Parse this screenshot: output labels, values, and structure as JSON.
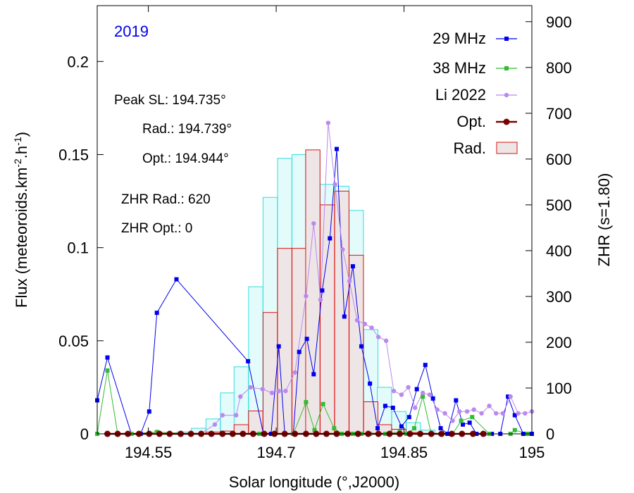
{
  "chart_data": {
    "type": "bar",
    "title": "2019",
    "xlabel": "Solar longitude (°,J2000)",
    "ylabel_left": [
      "Flux (meteoroids.km",
      "-2",
      ".h",
      "-1",
      ")"
    ],
    "ylabel_right": "ZHR (s=1.80)",
    "xlim": [
      194.49,
      195.0
    ],
    "ylim_left": [
      0,
      0.23
    ],
    "ylim_right": [
      0,
      935
    ],
    "x_ticks": [
      194.55,
      194.7,
      194.85,
      195
    ],
    "x_tick_labels": [
      "194.55",
      "194.7",
      "194.85",
      "195"
    ],
    "y_left_ticks": [
      0,
      0.05,
      0.1,
      0.15,
      0.2
    ],
    "y_left_tick_labels": [
      "0",
      "0.05",
      "0.1",
      "0.15",
      "0.2"
    ],
    "y_right_ticks": [
      0,
      100,
      200,
      300,
      400,
      500,
      600,
      700,
      800,
      900
    ],
    "y_right_tick_labels": [
      "0",
      "100",
      "200",
      "300",
      "400",
      "500",
      "600",
      "700",
      "800",
      "900"
    ],
    "annotations": {
      "peak_sl": "Peak SL: 194.735°",
      "rad": "Rad.: 194.739°",
      "opt": "Opt.: 194.944°",
      "zhr_rad": "ZHR Rad.: 620",
      "zhr_opt": "ZHR Opt.: 0"
    },
    "legend": [
      "29 MHz",
      "38 MHz",
      "Li 2022",
      "Opt.",
      "Rad."
    ],
    "colors": {
      "mhz29": "#0000ee",
      "mhz38": "#33bb33",
      "li2022": "#bb88ee",
      "opt": "#7a0000",
      "rad_stroke": "#dd1111",
      "rad_fill": "#eee6e6",
      "cyan_stroke": "#33dddd",
      "cyan_fill": "#e4fbfb",
      "title": "#0000ee"
    },
    "bar_width": 0.0168,
    "cyan_bars": {
      "x": [
        194.592,
        194.609,
        194.626,
        194.643,
        194.659,
        194.676,
        194.693,
        194.71,
        194.727,
        194.743,
        194.76,
        194.777,
        194.794,
        194.811,
        194.827,
        194.844,
        194.861,
        194.878
      ],
      "values": [
        0.001,
        0.003,
        0.008,
        0.022,
        0.036,
        0.079,
        0.127,
        0.148,
        0.15,
        0.152,
        0.134,
        0.133,
        0.12,
        0.056,
        0.025,
        0.012,
        0.006,
        0.002
      ]
    },
    "rad_bars": {
      "x": [
        194.609,
        194.626,
        194.643,
        194.659,
        194.676,
        194.693,
        194.71,
        194.727,
        194.743,
        194.76,
        194.777,
        194.794,
        194.811,
        194.827,
        194.844,
        194.861
      ],
      "values": [
        1,
        4,
        6,
        20,
        50,
        265,
        405,
        405,
        620,
        500,
        530,
        390,
        70,
        20,
        10,
        3
      ]
    },
    "series": [
      {
        "name": "29 MHz",
        "x": [
          194.49,
          194.502,
          194.53,
          194.541,
          194.551,
          194.56,
          194.583,
          194.667,
          194.685,
          194.694,
          194.703,
          194.71,
          194.72,
          194.727,
          194.736,
          194.744,
          194.754,
          194.763,
          194.771,
          194.78,
          194.79,
          194.8,
          194.81,
          194.819,
          194.828,
          194.837,
          194.847,
          194.856,
          194.865,
          194.875,
          194.884,
          194.893,
          194.901,
          194.911,
          194.919,
          194.927,
          194.935,
          194.944,
          194.953,
          194.963,
          194.972,
          194.98,
          194.99,
          195.0
        ],
        "values": [
          0.018,
          0.041,
          0,
          0,
          0.012,
          0.065,
          0.083,
          0.039,
          0,
          0,
          0.047,
          0,
          0,
          0.044,
          0.051,
          0.032,
          0.077,
          0.105,
          0.153,
          0.063,
          0.09,
          0.047,
          0.027,
          0.003,
          0.015,
          0.014,
          0.004,
          0.009,
          0.024,
          0.037,
          0.019,
          0.003,
          0,
          0.018,
          0.005,
          0.006,
          0,
          0,
          0,
          0,
          0.02,
          0.01,
          0,
          0
        ]
      },
      {
        "name": "38 MHz",
        "x": [
          194.49,
          194.502,
          194.514,
          194.53,
          194.56,
          194.6,
          194.68,
          194.72,
          194.735,
          194.745,
          194.755,
          194.768,
          194.777,
          194.79,
          194.8,
          194.81,
          194.828,
          194.845,
          194.853,
          194.862,
          194.872,
          194.882,
          194.893,
          194.907,
          194.917,
          194.93,
          194.95,
          194.975,
          194.98,
          194.995
        ],
        "values": [
          0,
          0.034,
          0,
          0,
          0.001,
          0,
          0,
          0,
          0.017,
          0.002,
          0.016,
          0.003,
          0,
          0,
          0,
          0,
          0,
          0.001,
          0,
          0.003,
          0.02,
          0,
          0,
          0,
          0.007,
          0.009,
          0,
          0,
          0.002,
          0
        ]
      },
      {
        "name": "Li 2022",
        "x": [
          194.611,
          194.628,
          194.637,
          194.653,
          194.658,
          194.67,
          194.684,
          194.695,
          194.703,
          194.711,
          194.722,
          194.735,
          194.744,
          194.752,
          194.761,
          194.769,
          194.778,
          194.786,
          194.795,
          194.804,
          194.812,
          194.82,
          194.829,
          194.838,
          194.847,
          194.855,
          194.863,
          194.872,
          194.88,
          194.889,
          194.898,
          194.907,
          194.915,
          194.924,
          194.932,
          194.941,
          194.95,
          194.958,
          194.966,
          194.975,
          194.984,
          194.992,
          195.0
        ],
        "values": [
          0,
          0.005,
          0.01,
          0.01,
          0.02,
          0.025,
          0.024,
          0.022,
          0.023,
          0.023,
          0.033,
          0.074,
          0.113,
          0.072,
          0.167,
          0.134,
          0.099,
          0.082,
          0.061,
          0.059,
          0.057,
          0.052,
          0.05,
          0.023,
          0.021,
          0.025,
          0.014,
          0.022,
          0.021,
          0.013,
          0.011,
          0.007,
          0.012,
          0.012,
          0.013,
          0.011,
          0.015,
          0.011,
          0.011,
          0.02,
          0.011,
          0.011,
          0.012
        ]
      },
      {
        "name": "Opt.",
        "x": [
          194.502,
          194.514,
          194.526,
          194.539,
          194.551,
          194.563,
          194.575,
          194.588,
          194.6,
          194.612,
          194.624,
          194.637,
          194.649,
          194.661,
          194.673,
          194.686,
          194.698,
          194.71,
          194.722,
          194.735,
          194.747,
          194.759,
          194.771,
          194.784,
          194.796,
          194.808,
          194.82,
          194.833,
          194.845,
          194.857,
          194.869,
          194.882,
          194.894,
          194.906,
          194.918,
          194.931,
          194.943
        ],
        "values": [
          0,
          0,
          0,
          0,
          0,
          0,
          0,
          0,
          0,
          0,
          0,
          0,
          0,
          0,
          0,
          0,
          0,
          0,
          0,
          0,
          0,
          0,
          0,
          0,
          0,
          0,
          0,
          0,
          0,
          0,
          0,
          0,
          0,
          0,
          0,
          0,
          0
        ]
      }
    ]
  }
}
